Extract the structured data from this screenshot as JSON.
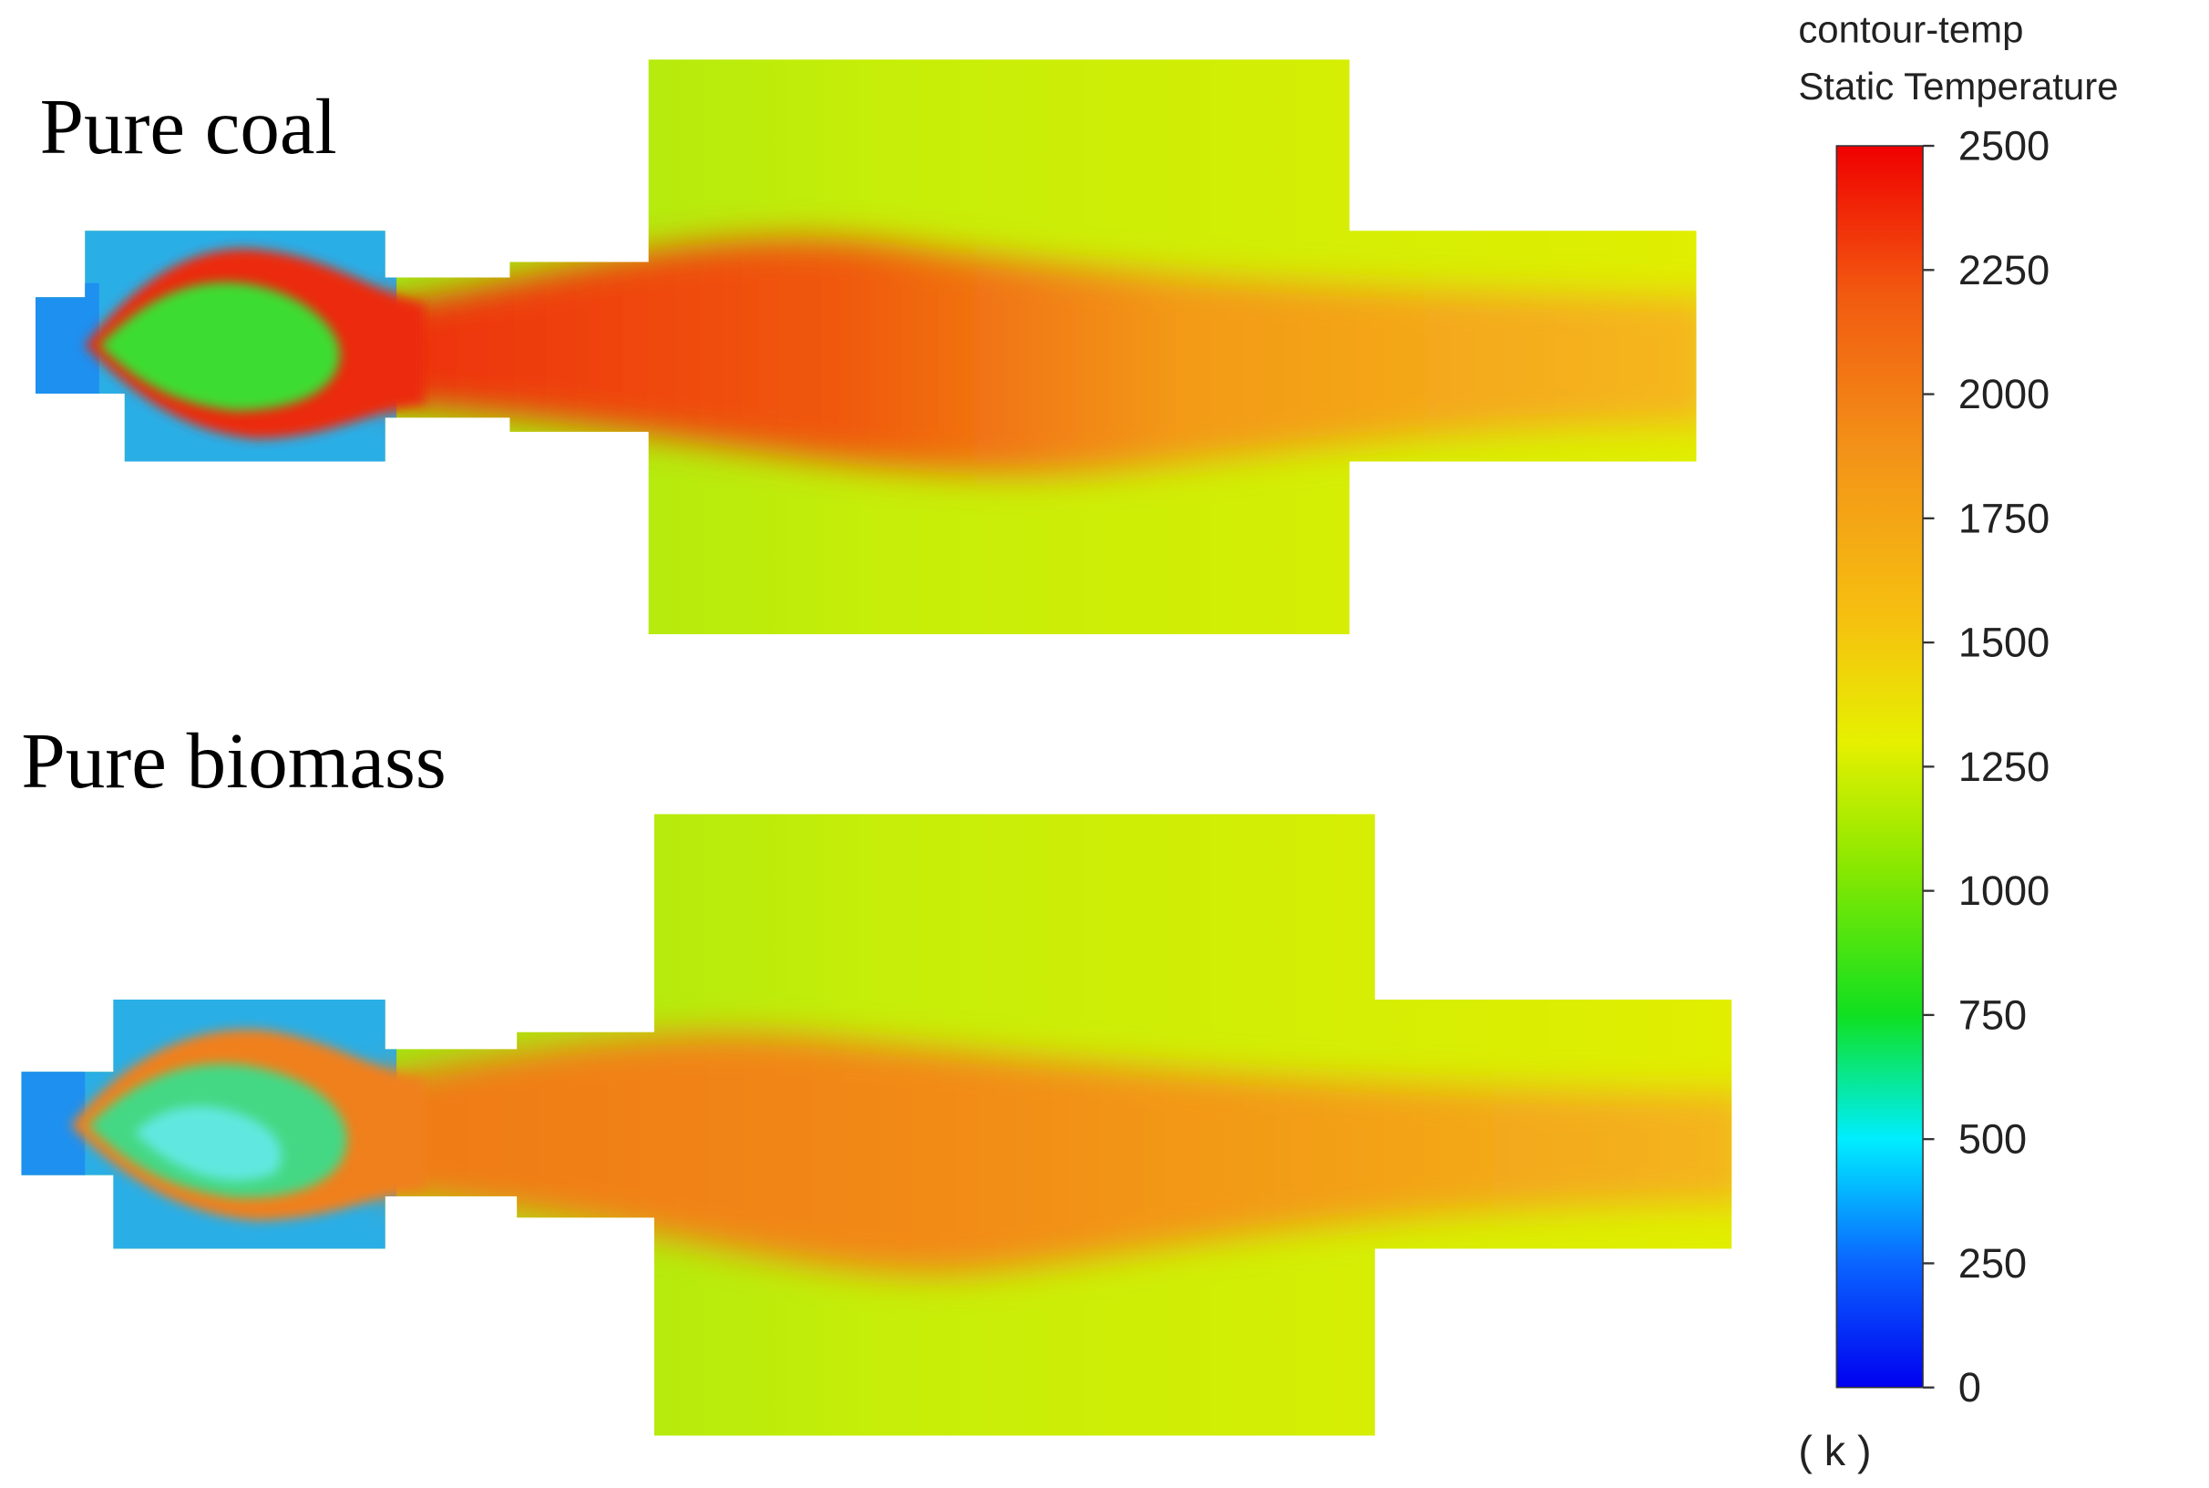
{
  "chart_data": {
    "type": "contour",
    "panels": [
      {
        "title": "Pure coal"
      },
      {
        "title": "Pure biomass"
      }
    ],
    "colorbar_title": [
      "contour-temp",
      "Static Temperature"
    ],
    "unit": "( k )",
    "ylim": [
      0,
      2500
    ],
    "yticks": [
      0,
      250,
      500,
      750,
      1000,
      1250,
      1500,
      1750,
      2000,
      2250,
      2500
    ]
  }
}
